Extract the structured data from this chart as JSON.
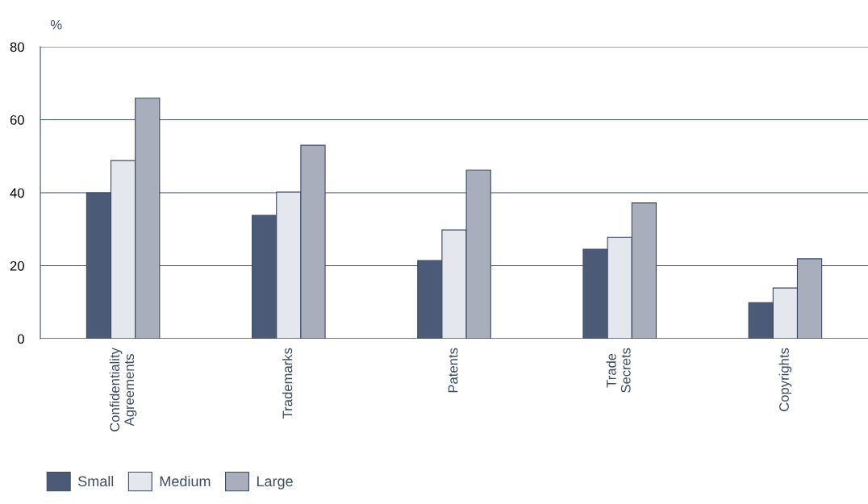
{
  "chart_data": {
    "type": "bar",
    "ylabel": "%",
    "categories": [
      "Confidentiality\nAgreements",
      "Trademarks",
      "Patents",
      "Trade\nSecrets",
      "Copyrights"
    ],
    "series": [
      {
        "name": "Small",
        "color": "#4b5a77",
        "values": [
          40,
          33.8,
          21.4,
          24.5,
          9.9
        ]
      },
      {
        "name": "Medium",
        "color": "#e4e7ee",
        "values": [
          48.8,
          40.2,
          29.8,
          27.8,
          13.9
        ]
      },
      {
        "name": "Large",
        "color": "#a8aebb",
        "values": [
          65.9,
          53,
          46.2,
          37.2,
          21.9
        ]
      }
    ],
    "ylim": [
      0,
      80
    ],
    "yticks": [
      0,
      20,
      40,
      60,
      80
    ],
    "grid": "y",
    "legend": "bottom left"
  }
}
